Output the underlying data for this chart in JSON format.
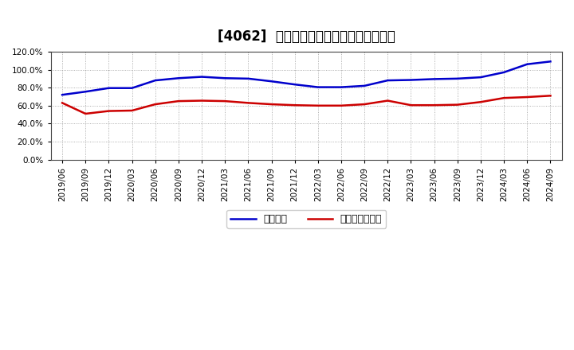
{
  "title": "[4062]  固定比率、固定長期適合率の推移",
  "blue_label": "固定比率",
  "red_label": "固定長期適合率",
  "x_labels": [
    "2019/06",
    "2019/09",
    "2019/12",
    "2020/03",
    "2020/06",
    "2020/09",
    "2020/12",
    "2021/03",
    "2021/06",
    "2021/09",
    "2021/12",
    "2022/03",
    "2022/06",
    "2022/09",
    "2022/12",
    "2023/03",
    "2023/06",
    "2023/09",
    "2023/12",
    "2024/03",
    "2024/06",
    "2024/09"
  ],
  "blue_values": [
    72.0,
    75.5,
    79.5,
    79.5,
    88.0,
    90.5,
    92.0,
    90.5,
    90.0,
    87.0,
    83.5,
    80.5,
    80.5,
    82.0,
    88.0,
    88.5,
    89.5,
    90.0,
    91.5,
    97.0,
    106.0,
    109.0
  ],
  "red_values": [
    63.0,
    51.0,
    54.0,
    54.5,
    61.5,
    65.0,
    65.5,
    65.0,
    63.0,
    61.5,
    60.5,
    60.0,
    60.0,
    61.5,
    65.5,
    60.5,
    60.5,
    61.0,
    64.0,
    68.5,
    69.5,
    71.0
  ],
  "ylim": [
    0,
    120
  ],
  "yticks": [
    0,
    20,
    40,
    60,
    80,
    100,
    120
  ],
  "ytick_labels": [
    "0.0%",
    "20.0%",
    "40.0%",
    "60.0%",
    "80.0%",
    "100.0%",
    "120.0%"
  ],
  "blue_color": "#0000cc",
  "red_color": "#cc0000",
  "bg_color": "#ffffff",
  "plot_bg_color": "#ffffff",
  "grid_color": "#999999",
  "title_fontsize": 12,
  "axis_fontsize": 7.5,
  "legend_fontsize": 9,
  "line_width": 1.8
}
